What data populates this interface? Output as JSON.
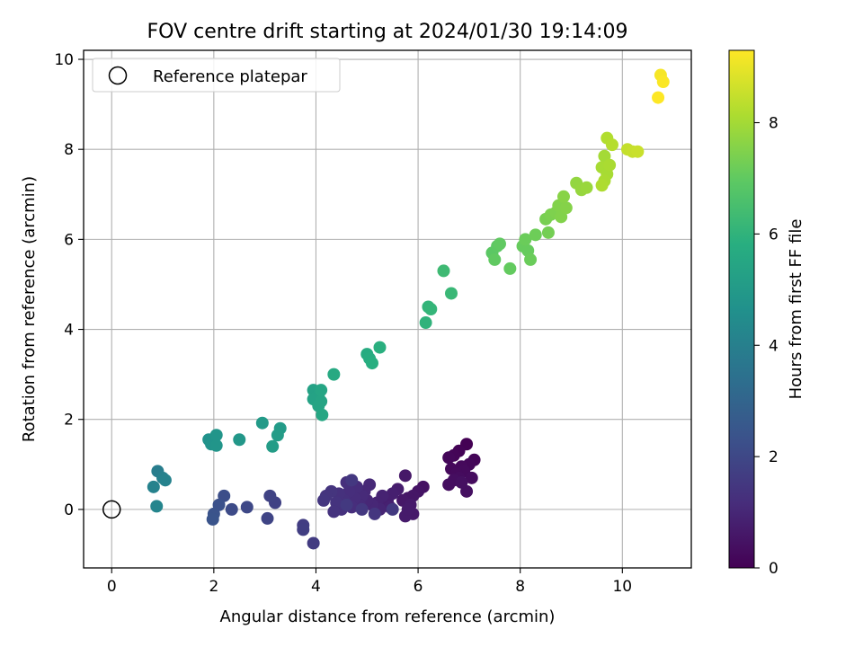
{
  "chart_data": {
    "type": "scatter",
    "title": "FOV centre drift starting at 2024/01/30 19:14:09",
    "xlabel": "Angular distance from reference (arcmin)",
    "ylabel": "Rotation from reference (arcmin)",
    "xlim": [
      -0.55,
      11.35
    ],
    "ylim": [
      -1.3,
      10.2
    ],
    "xticks": [
      0,
      2,
      4,
      6,
      8,
      10
    ],
    "yticks": [
      0,
      2,
      4,
      6,
      8,
      10
    ],
    "grid": true,
    "legend": {
      "position": "top-left",
      "entries": [
        "Reference platepar"
      ]
    },
    "reference_point": {
      "x": 0,
      "y": 0
    },
    "colorbar": {
      "label": "Hours from first FF file",
      "colormap": "viridis",
      "min": 0,
      "max": 9.3,
      "ticks": [
        0,
        2,
        4,
        6,
        8
      ]
    },
    "points": [
      {
        "x": 6.95,
        "y": 1.45,
        "c": 0.0
      },
      {
        "x": 6.8,
        "y": 1.3,
        "c": 0.05
      },
      {
        "x": 6.7,
        "y": 1.2,
        "c": 0.1
      },
      {
        "x": 7.1,
        "y": 1.1,
        "c": 0.1
      },
      {
        "x": 6.6,
        "y": 1.15,
        "c": 0.15
      },
      {
        "x": 7.0,
        "y": 1.0,
        "c": 0.15
      },
      {
        "x": 6.85,
        "y": 0.95,
        "c": 0.2
      },
      {
        "x": 6.65,
        "y": 0.9,
        "c": 0.2
      },
      {
        "x": 6.9,
        "y": 0.85,
        "c": 0.25
      },
      {
        "x": 6.75,
        "y": 0.8,
        "c": 0.25
      },
      {
        "x": 7.05,
        "y": 0.7,
        "c": 0.3
      },
      {
        "x": 6.8,
        "y": 0.7,
        "c": 0.3
      },
      {
        "x": 6.7,
        "y": 0.65,
        "c": 0.35
      },
      {
        "x": 6.6,
        "y": 0.55,
        "c": 0.35
      },
      {
        "x": 6.95,
        "y": 0.4,
        "c": 0.4
      },
      {
        "x": 6.85,
        "y": 0.6,
        "c": 0.4
      },
      {
        "x": 6.1,
        "y": 0.5,
        "c": 0.45
      },
      {
        "x": 6.0,
        "y": 0.4,
        "c": 0.5
      },
      {
        "x": 5.9,
        "y": 0.3,
        "c": 0.55
      },
      {
        "x": 5.8,
        "y": 0.25,
        "c": 0.55
      },
      {
        "x": 5.75,
        "y": 0.75,
        "c": 0.6
      },
      {
        "x": 5.7,
        "y": 0.2,
        "c": 0.6
      },
      {
        "x": 5.85,
        "y": 0.1,
        "c": 0.65
      },
      {
        "x": 5.9,
        "y": -0.1,
        "c": 0.65
      },
      {
        "x": 5.75,
        "y": -0.15,
        "c": 0.7
      },
      {
        "x": 5.8,
        "y": 0.0,
        "c": 0.7
      },
      {
        "x": 5.6,
        "y": 0.45,
        "c": 0.75
      },
      {
        "x": 5.5,
        "y": 0.35,
        "c": 0.8
      },
      {
        "x": 5.4,
        "y": 0.2,
        "c": 0.8
      },
      {
        "x": 5.45,
        "y": 0.05,
        "c": 0.85
      },
      {
        "x": 5.3,
        "y": 0.3,
        "c": 0.9
      },
      {
        "x": 5.2,
        "y": 0.15,
        "c": 0.9
      },
      {
        "x": 5.25,
        "y": 0.0,
        "c": 0.95
      },
      {
        "x": 5.1,
        "y": 0.1,
        "c": 1.0
      },
      {
        "x": 5.0,
        "y": 0.2,
        "c": 1.0
      },
      {
        "x": 5.05,
        "y": 0.55,
        "c": 1.05
      },
      {
        "x": 4.95,
        "y": 0.4,
        "c": 1.05
      },
      {
        "x": 4.9,
        "y": 0.3,
        "c": 1.1
      },
      {
        "x": 4.85,
        "y": 0.1,
        "c": 1.1
      },
      {
        "x": 4.8,
        "y": 0.5,
        "c": 1.15
      },
      {
        "x": 4.75,
        "y": 0.25,
        "c": 1.15
      },
      {
        "x": 4.7,
        "y": 0.05,
        "c": 1.2
      },
      {
        "x": 4.65,
        "y": 0.4,
        "c": 1.2
      },
      {
        "x": 4.6,
        "y": 0.6,
        "c": 1.25
      },
      {
        "x": 4.55,
        "y": 0.2,
        "c": 1.25
      },
      {
        "x": 4.5,
        "y": 0.0,
        "c": 1.3
      },
      {
        "x": 4.45,
        "y": 0.35,
        "c": 1.3
      },
      {
        "x": 4.4,
        "y": 0.15,
        "c": 1.35
      },
      {
        "x": 4.35,
        "y": -0.05,
        "c": 1.35
      },
      {
        "x": 4.3,
        "y": 0.4,
        "c": 1.4
      },
      {
        "x": 4.2,
        "y": 0.3,
        "c": 1.4
      },
      {
        "x": 4.15,
        "y": 0.2,
        "c": 1.45
      },
      {
        "x": 5.15,
        "y": -0.1,
        "c": 1.45
      },
      {
        "x": 4.7,
        "y": 0.65,
        "c": 1.5
      },
      {
        "x": 4.9,
        "y": 0.0,
        "c": 1.5
      },
      {
        "x": 4.6,
        "y": 0.1,
        "c": 1.55
      },
      {
        "x": 5.5,
        "y": 0.0,
        "c": 1.55
      },
      {
        "x": 3.95,
        "y": -0.75,
        "c": 1.6
      },
      {
        "x": 3.75,
        "y": -0.35,
        "c": 1.65
      },
      {
        "x": 3.75,
        "y": -0.45,
        "c": 1.7
      },
      {
        "x": 3.2,
        "y": 0.15,
        "c": 1.8
      },
      {
        "x": 3.1,
        "y": 0.3,
        "c": 1.85
      },
      {
        "x": 3.05,
        "y": -0.2,
        "c": 1.9
      },
      {
        "x": 2.65,
        "y": 0.05,
        "c": 2.0
      },
      {
        "x": 2.35,
        "y": 0.0,
        "c": 2.1
      },
      {
        "x": 2.2,
        "y": 0.3,
        "c": 2.2
      },
      {
        "x": 2.1,
        "y": 0.1,
        "c": 2.3
      },
      {
        "x": 2.0,
        "y": -0.1,
        "c": 2.35
      },
      {
        "x": 1.98,
        "y": -0.22,
        "c": 2.4
      },
      {
        "x": 0.9,
        "y": 0.85,
        "c": 3.9
      },
      {
        "x": 1.0,
        "y": 0.7,
        "c": 4.0
      },
      {
        "x": 1.05,
        "y": 0.65,
        "c": 4.1
      },
      {
        "x": 0.82,
        "y": 0.5,
        "c": 4.1
      },
      {
        "x": 0.88,
        "y": 0.07,
        "c": 4.2
      },
      {
        "x": 1.9,
        "y": 1.55,
        "c": 4.7
      },
      {
        "x": 1.95,
        "y": 1.45,
        "c": 4.75
      },
      {
        "x": 2.05,
        "y": 1.65,
        "c": 4.8
      },
      {
        "x": 2.05,
        "y": 1.42,
        "c": 4.8
      },
      {
        "x": 2.5,
        "y": 1.55,
        "c": 4.9
      },
      {
        "x": 2.95,
        "y": 1.92,
        "c": 5.0
      },
      {
        "x": 3.3,
        "y": 1.8,
        "c": 5.05
      },
      {
        "x": 3.25,
        "y": 1.65,
        "c": 5.1
      },
      {
        "x": 3.15,
        "y": 1.4,
        "c": 5.1
      },
      {
        "x": 3.95,
        "y": 2.65,
        "c": 5.3
      },
      {
        "x": 4.05,
        "y": 2.55,
        "c": 5.3
      },
      {
        "x": 3.95,
        "y": 2.45,
        "c": 5.35
      },
      {
        "x": 4.1,
        "y": 2.4,
        "c": 5.4
      },
      {
        "x": 4.05,
        "y": 2.3,
        "c": 5.4
      },
      {
        "x": 4.1,
        "y": 2.65,
        "c": 5.45
      },
      {
        "x": 4.12,
        "y": 2.1,
        "c": 5.5
      },
      {
        "x": 4.35,
        "y": 3.0,
        "c": 5.6
      },
      {
        "x": 5.0,
        "y": 3.45,
        "c": 5.7
      },
      {
        "x": 5.05,
        "y": 3.35,
        "c": 5.75
      },
      {
        "x": 5.1,
        "y": 3.25,
        "c": 5.8
      },
      {
        "x": 5.25,
        "y": 3.6,
        "c": 5.85
      },
      {
        "x": 6.15,
        "y": 4.15,
        "c": 6.0
      },
      {
        "x": 6.2,
        "y": 4.5,
        "c": 6.05
      },
      {
        "x": 6.25,
        "y": 4.45,
        "c": 6.1
      },
      {
        "x": 6.65,
        "y": 4.8,
        "c": 6.2
      },
      {
        "x": 6.5,
        "y": 5.3,
        "c": 6.3
      },
      {
        "x": 7.45,
        "y": 5.7,
        "c": 6.9
      },
      {
        "x": 7.55,
        "y": 5.85,
        "c": 6.95
      },
      {
        "x": 7.6,
        "y": 5.9,
        "c": 7.0
      },
      {
        "x": 7.5,
        "y": 5.55,
        "c": 7.0
      },
      {
        "x": 7.8,
        "y": 5.35,
        "c": 7.05
      },
      {
        "x": 8.05,
        "y": 5.85,
        "c": 7.1
      },
      {
        "x": 8.15,
        "y": 5.75,
        "c": 7.1
      },
      {
        "x": 8.1,
        "y": 6.0,
        "c": 7.15
      },
      {
        "x": 8.2,
        "y": 5.55,
        "c": 7.15
      },
      {
        "x": 8.3,
        "y": 6.1,
        "c": 7.2
      },
      {
        "x": 8.55,
        "y": 6.15,
        "c": 7.3
      },
      {
        "x": 8.5,
        "y": 6.45,
        "c": 7.35
      },
      {
        "x": 8.6,
        "y": 6.55,
        "c": 7.4
      },
      {
        "x": 8.7,
        "y": 6.6,
        "c": 7.45
      },
      {
        "x": 8.75,
        "y": 6.75,
        "c": 7.5
      },
      {
        "x": 8.8,
        "y": 6.5,
        "c": 7.5
      },
      {
        "x": 8.9,
        "y": 6.7,
        "c": 7.55
      },
      {
        "x": 8.85,
        "y": 6.95,
        "c": 7.6
      },
      {
        "x": 9.1,
        "y": 7.25,
        "c": 7.75
      },
      {
        "x": 9.2,
        "y": 7.1,
        "c": 7.8
      },
      {
        "x": 9.3,
        "y": 7.15,
        "c": 7.85
      },
      {
        "x": 9.65,
        "y": 7.85,
        "c": 8.0
      },
      {
        "x": 9.6,
        "y": 7.6,
        "c": 8.05
      },
      {
        "x": 9.7,
        "y": 7.45,
        "c": 8.05
      },
      {
        "x": 9.75,
        "y": 7.65,
        "c": 8.1
      },
      {
        "x": 9.65,
        "y": 7.3,
        "c": 8.1
      },
      {
        "x": 9.6,
        "y": 7.2,
        "c": 8.15
      },
      {
        "x": 9.7,
        "y": 8.25,
        "c": 8.2
      },
      {
        "x": 9.8,
        "y": 8.1,
        "c": 8.25
      },
      {
        "x": 10.1,
        "y": 8.0,
        "c": 8.45
      },
      {
        "x": 10.2,
        "y": 7.95,
        "c": 8.5
      },
      {
        "x": 10.3,
        "y": 7.95,
        "c": 8.55
      },
      {
        "x": 10.75,
        "y": 9.65,
        "c": 9.2
      },
      {
        "x": 10.8,
        "y": 9.5,
        "c": 9.25
      },
      {
        "x": 10.7,
        "y": 9.15,
        "c": 9.3
      }
    ]
  }
}
